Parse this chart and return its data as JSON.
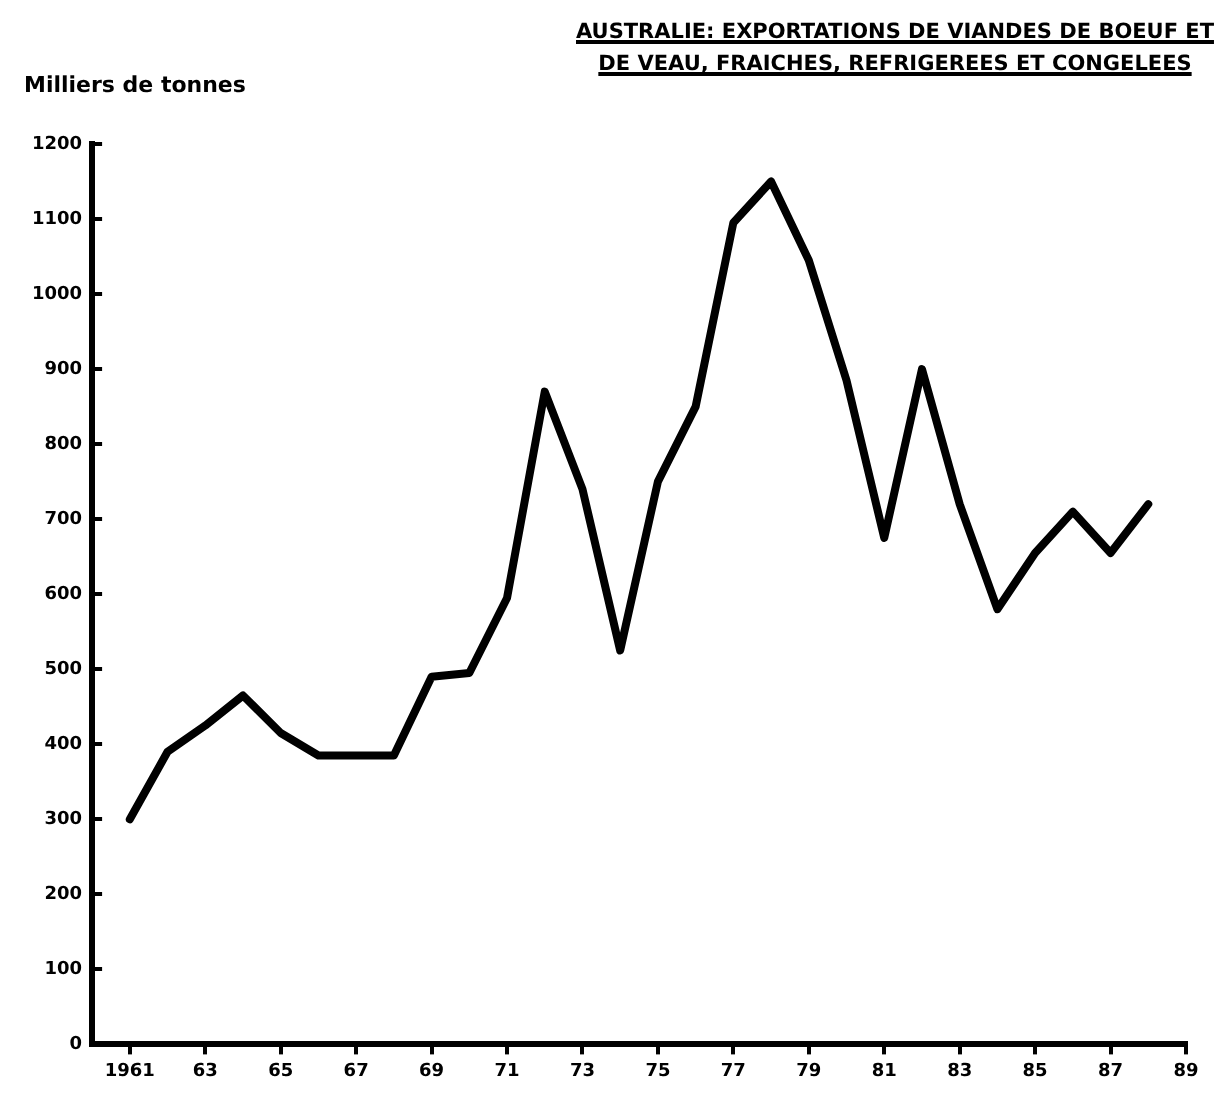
{
  "chart_data": {
    "type": "line",
    "title": "AUSTRALIE:  EXPORTATIONS DE VIANDES DE BOEUF ET DE VEAU, FRAICHES, REFRIGEREES ET CONGELEES",
    "ylabel": "Milliers de tonnes",
    "x": [
      1961,
      1962,
      1963,
      1964,
      1965,
      1966,
      1967,
      1968,
      1969,
      1970,
      1971,
      1972,
      1973,
      1974,
      1975,
      1976,
      1977,
      1978,
      1979,
      1980,
      1981,
      1982,
      1983,
      1984,
      1985,
      1986,
      1987,
      1988
    ],
    "series": [
      {
        "color": "#000000",
        "values": [
          300,
          390,
          425,
          465,
          415,
          385,
          385,
          385,
          490,
          495,
          595,
          870,
          740,
          525,
          750,
          850,
          1095,
          1150,
          1045,
          885,
          675,
          900,
          720,
          580,
          655,
          710,
          655,
          720
        ]
      }
    ],
    "xlim": [
      1960,
      1989
    ],
    "xticks": [
      1961,
      {
        "value": 1963,
        "label": "63"
      },
      {
        "value": 1965,
        "label": "65"
      },
      {
        "value": 1967,
        "label": "67"
      },
      {
        "value": 1969,
        "label": "69"
      },
      {
        "value": 1971,
        "label": "71"
      },
      {
        "value": 1973,
        "label": "73"
      },
      {
        "value": 1975,
        "label": "75"
      },
      {
        "value": 1977,
        "label": "77"
      },
      {
        "value": 1979,
        "label": "79"
      },
      {
        "value": 1981,
        "label": "81"
      },
      {
        "value": 1983,
        "label": "83"
      },
      {
        "value": 1985,
        "label": "85"
      },
      {
        "value": 1987,
        "label": "87"
      },
      {
        "value": 1989,
        "label": "89"
      }
    ],
    "ylim": [
      0,
      1200
    ],
    "yticks": [
      0,
      100,
      200,
      300,
      400,
      500,
      600,
      700,
      800,
      900,
      1000,
      1100,
      1200
    ],
    "grid": false,
    "legend": false,
    "marker": "none",
    "line_style": "solid"
  }
}
